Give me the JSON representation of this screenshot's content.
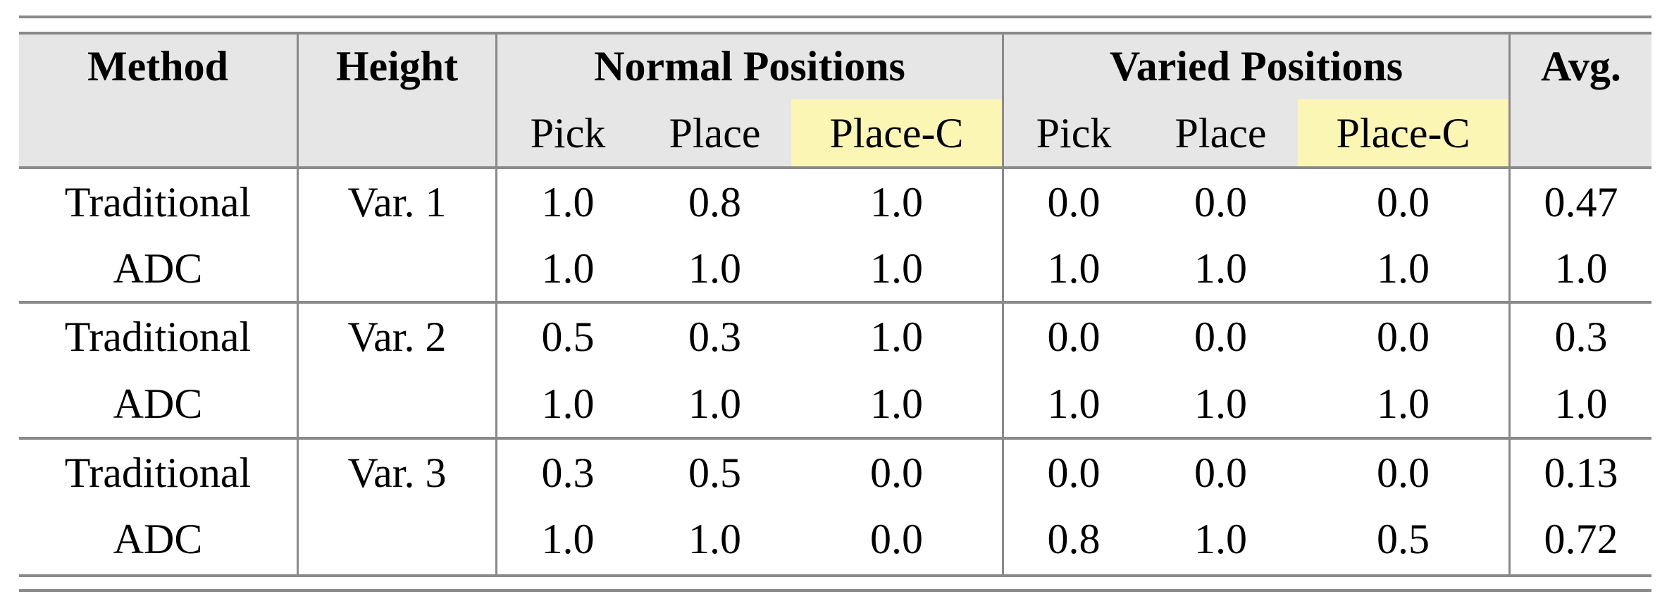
{
  "header": {
    "method": "Method",
    "height": "Height",
    "normal_group": "Normal Positions",
    "varied_group": "Varied Positions",
    "avg": "Avg.",
    "sub": [
      "Pick",
      "Place",
      "Place-C",
      "Pick",
      "Place",
      "Place-C"
    ]
  },
  "highlight_color": "#fbf6b4",
  "header_bg": "#e6e6e6",
  "rows": [
    {
      "method": "Traditional",
      "height": "Var. 1",
      "values": [
        "1.0",
        "0.8",
        "1.0",
        "0.0",
        "0.0",
        "0.0"
      ],
      "avg": "0.47"
    },
    {
      "method": "ADC",
      "height": "",
      "values": [
        "1.0",
        "1.0",
        "1.0",
        "1.0",
        "1.0",
        "1.0"
      ],
      "avg": "1.0"
    },
    {
      "method": "Traditional",
      "height": "Var. 2",
      "values": [
        "0.5",
        "0.3",
        "1.0",
        "0.0",
        "0.0",
        "0.0"
      ],
      "avg": "0.3"
    },
    {
      "method": "ADC",
      "height": "",
      "values": [
        "1.0",
        "1.0",
        "1.0",
        "1.0",
        "1.0",
        "1.0"
      ],
      "avg": "1.0"
    },
    {
      "method": "Traditional",
      "height": "Var. 3",
      "values": [
        "0.3",
        "0.5",
        "0.0",
        "0.0",
        "0.0",
        "0.0"
      ],
      "avg": "0.13"
    },
    {
      "method": "ADC",
      "height": "",
      "values": [
        "1.0",
        "1.0",
        "0.0",
        "0.8",
        "1.0",
        "0.5"
      ],
      "avg": "0.72"
    }
  ]
}
